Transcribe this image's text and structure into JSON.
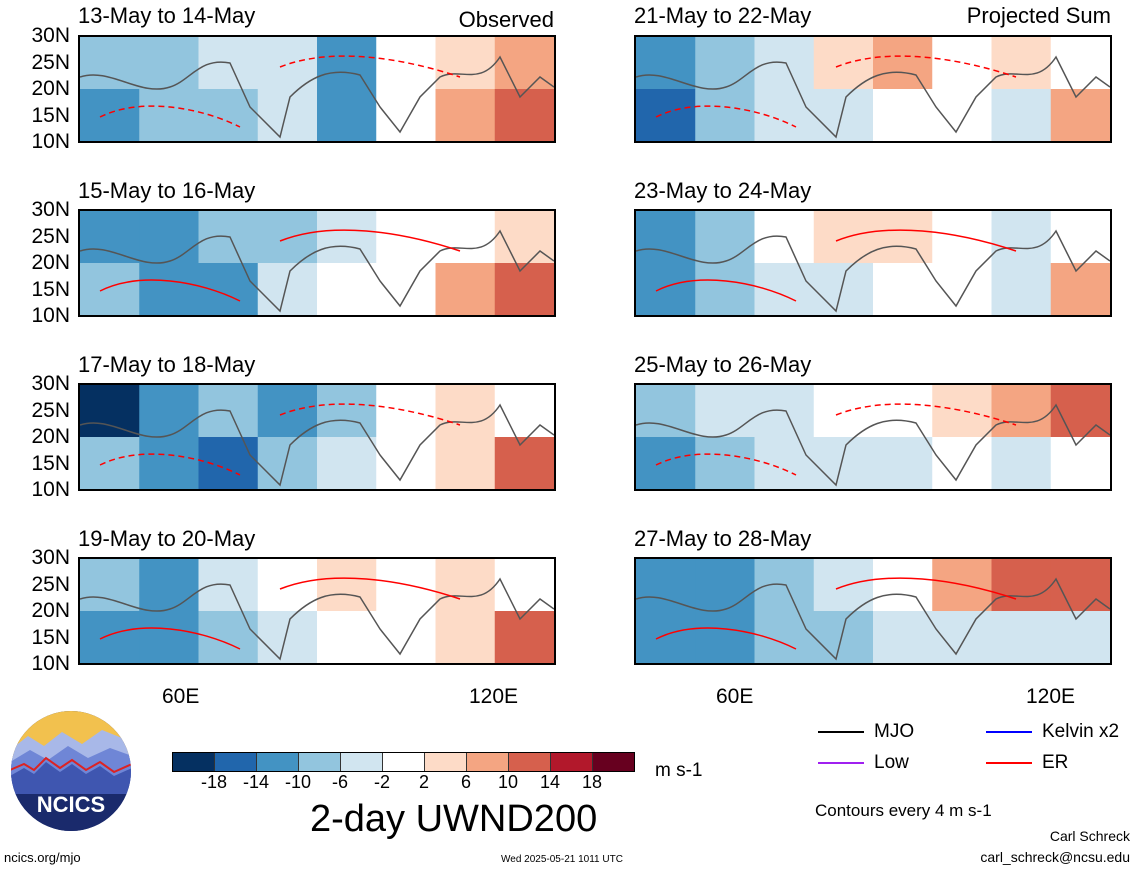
{
  "headers": {
    "observed": "Observed",
    "projected": "Projected Sum"
  },
  "panels": [
    {
      "title": "13-May to 14-May",
      "column": "observed"
    },
    {
      "title": "15-May to 16-May",
      "column": "observed"
    },
    {
      "title": "17-May to 18-May",
      "column": "observed"
    },
    {
      "title": "19-May to 20-May",
      "column": "observed"
    },
    {
      "title": "21-May to 22-May",
      "column": "projected"
    },
    {
      "title": "23-May to 24-May",
      "column": "projected"
    },
    {
      "title": "25-May to 26-May",
      "column": "projected"
    },
    {
      "title": "27-May to 28-May",
      "column": "projected"
    }
  ],
  "lat_labels": [
    "30N",
    "25N",
    "20N",
    "15N",
    "10N"
  ],
  "lon_labels": [
    "60E",
    "120E"
  ],
  "colorbar": {
    "colors": [
      "#053061",
      "#2166ac",
      "#4393c3",
      "#92c5de",
      "#d1e5f0",
      "#ffffff",
      "#fddbc7",
      "#f4a582",
      "#d6604d",
      "#b2182b",
      "#67001f"
    ],
    "ticks": [
      "-18",
      "-14",
      "-10",
      "-6",
      "-2",
      "2",
      "6",
      "10",
      "14",
      "18"
    ],
    "units": "m s-1",
    "title": "2-day UWND200"
  },
  "legend": [
    {
      "label": "MJO",
      "color": "#000000"
    },
    {
      "label": "Kelvin x2",
      "color": "#0000ff"
    },
    {
      "label": "Low",
      "color": "#a020f0"
    },
    {
      "label": "ER",
      "color": "#ff0000"
    }
  ],
  "contour_note": "Contours every 4 m s-1",
  "footer": {
    "logo_text": "NCICS",
    "url": "ncics.org/mjo",
    "timestamp": "Wed 2025-05-21 1011 UTC",
    "author": "Carl Schreck",
    "email": "carl_schreck@ncsu.edu"
  }
}
